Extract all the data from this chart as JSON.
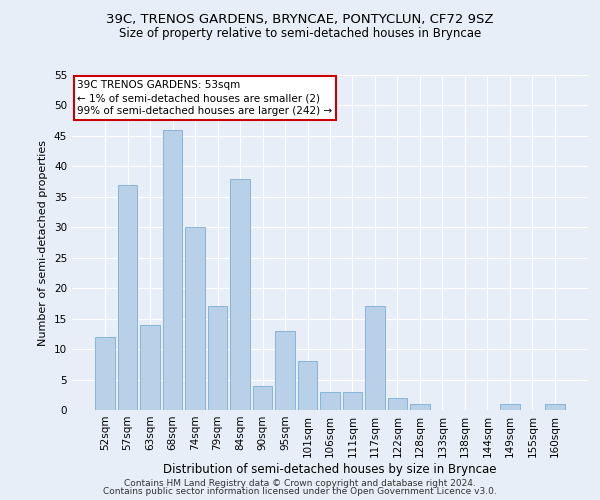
{
  "title1": "39C, TRENOS GARDENS, BRYNCAE, PONTYCLUN, CF72 9SZ",
  "title2": "Size of property relative to semi-detached houses in Bryncae",
  "xlabel": "Distribution of semi-detached houses by size in Bryncae",
  "ylabel": "Number of semi-detached properties",
  "categories": [
    "52sqm",
    "57sqm",
    "63sqm",
    "68sqm",
    "74sqm",
    "79sqm",
    "84sqm",
    "90sqm",
    "95sqm",
    "101sqm",
    "106sqm",
    "111sqm",
    "117sqm",
    "122sqm",
    "128sqm",
    "133sqm",
    "138sqm",
    "144sqm",
    "149sqm",
    "155sqm",
    "160sqm"
  ],
  "values": [
    12,
    37,
    14,
    46,
    30,
    17,
    38,
    4,
    13,
    8,
    3,
    3,
    17,
    2,
    1,
    0,
    0,
    0,
    1,
    0,
    1
  ],
  "bar_color": "#b8d0e8",
  "bar_edge_color": "#7aafd4",
  "annotation_text": "39C TRENOS GARDENS: 53sqm\n← 1% of semi-detached houses are smaller (2)\n99% of semi-detached houses are larger (242) →",
  "annotation_box_color": "#ffffff",
  "annotation_box_edge_color": "#cc0000",
  "footnote1": "Contains HM Land Registry data © Crown copyright and database right 2024.",
  "footnote2": "Contains public sector information licensed under the Open Government Licence v3.0.",
  "ylim": [
    0,
    55
  ],
  "yticks": [
    0,
    5,
    10,
    15,
    20,
    25,
    30,
    35,
    40,
    45,
    50,
    55
  ],
  "bg_color": "#e8eef8",
  "grid_color": "#ffffff",
  "title1_fontsize": 9.5,
  "title2_fontsize": 8.5,
  "xlabel_fontsize": 8.5,
  "ylabel_fontsize": 8,
  "tick_fontsize": 7.5,
  "annotation_fontsize": 7.5,
  "footnote_fontsize": 6.5
}
